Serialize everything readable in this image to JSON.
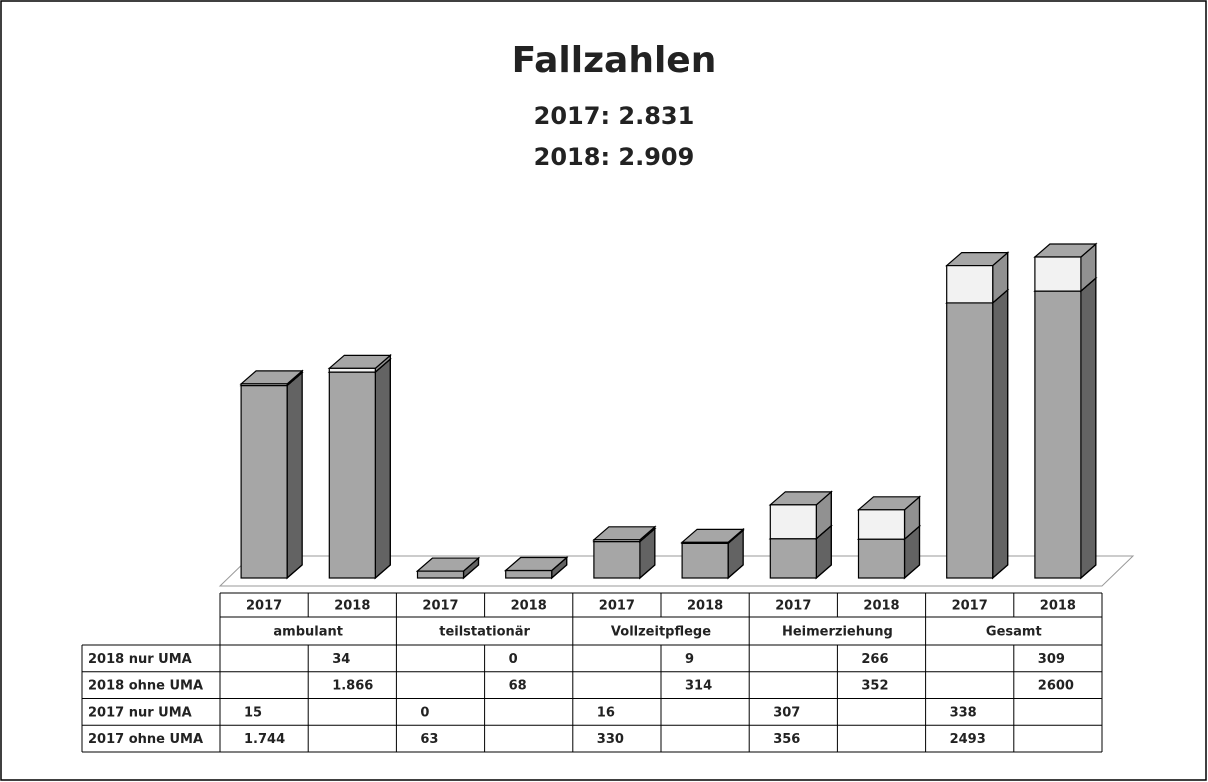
{
  "chart_data": {
    "type": "bar3d_stacked",
    "title": "Fallzahlen",
    "subtitle": [
      "2017: 2.831",
      "2018: 2.909"
    ],
    "categories": [
      "2017",
      "2018",
      "2017",
      "2018",
      "2017",
      "2018",
      "2017",
      "2018",
      "2017",
      "2018"
    ],
    "groups": [
      "ambulant",
      "teilstationär",
      "Vollzeitpflege",
      "Heimerziehung",
      "Gesamt"
    ],
    "series": [
      {
        "name": "2018 nur UMA",
        "color": "#f2f2f2",
        "values": [
          null,
          34,
          null,
          0,
          null,
          9,
          null,
          266,
          null,
          309
        ]
      },
      {
        "name": "2018 ohne UMA",
        "color": "#a6a6a6",
        "values": [
          null,
          1866,
          null,
          68,
          null,
          314,
          null,
          352,
          null,
          2600
        ],
        "value_labels": [
          null,
          "1.866",
          null,
          "68",
          null,
          "314",
          null,
          "352",
          null,
          "2600"
        ]
      },
      {
        "name": "2017 nur UMA",
        "color": "#f2f2f2",
        "values": [
          15,
          null,
          0,
          null,
          16,
          null,
          307,
          null,
          338,
          null
        ]
      },
      {
        "name": "2017 ohne UMA",
        "color": "#a6a6a6",
        "values": [
          1744,
          null,
          63,
          null,
          330,
          null,
          356,
          null,
          2493,
          null
        ],
        "value_labels": [
          "1.744",
          null,
          "63",
          null,
          "330",
          null,
          "356",
          null,
          "2493",
          null
        ]
      }
    ]
  }
}
